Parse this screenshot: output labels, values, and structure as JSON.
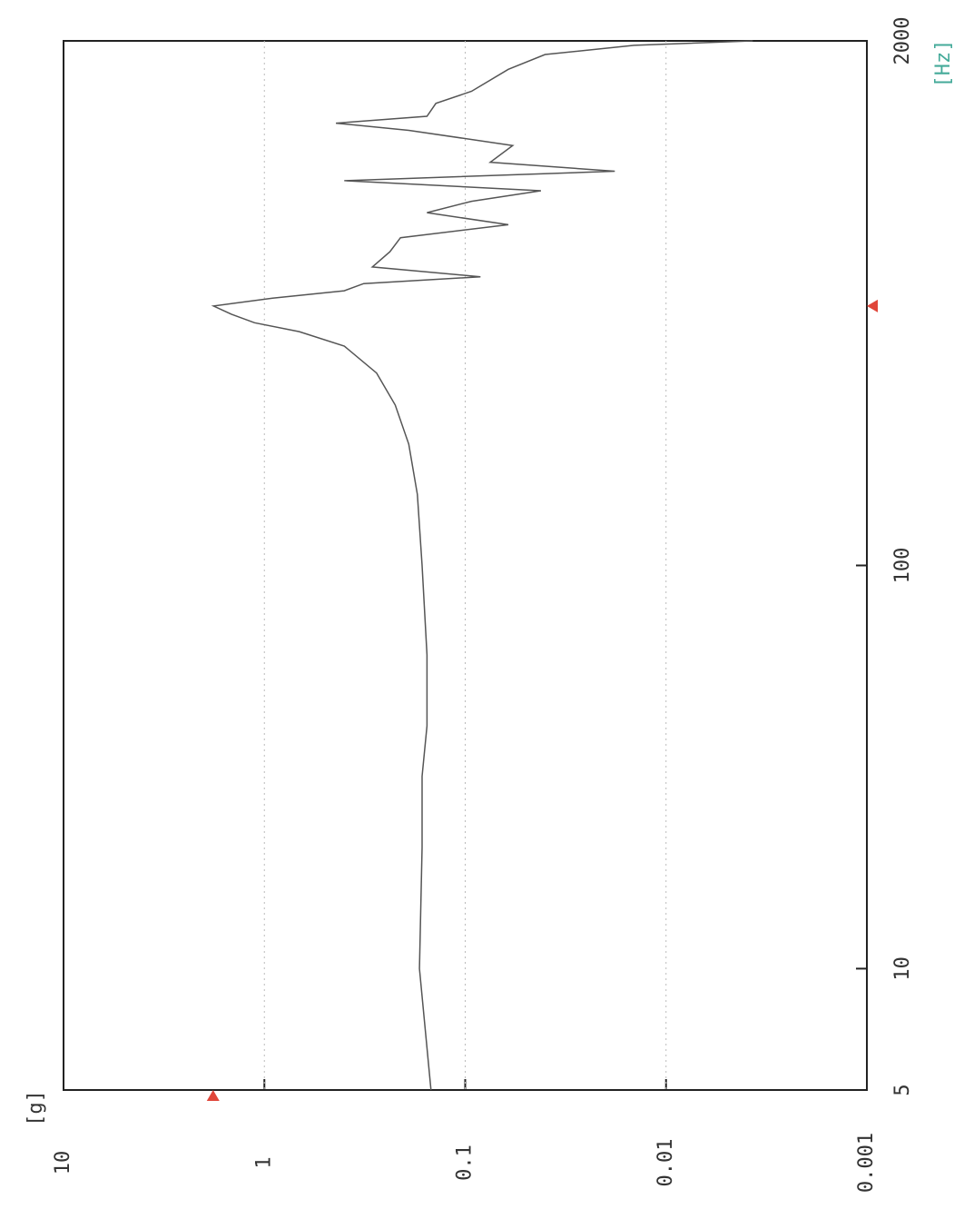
{
  "chart_data": {
    "type": "line",
    "y_label": "[g]",
    "x_label": "[Hz]",
    "x": [
      5,
      10,
      20,
      30,
      40,
      60,
      100,
      150,
      200,
      250,
      300,
      350,
      380,
      400,
      420,
      440,
      460,
      480,
      500,
      520,
      550,
      600,
      650,
      700,
      750,
      800,
      850,
      900,
      950,
      1000,
      1100,
      1200,
      1250,
      1300,
      1400,
      1500,
      1700,
      1850,
      1950,
      2000
    ],
    "values": [
      0.148,
      0.169,
      0.164,
      0.164,
      0.155,
      0.155,
      0.164,
      0.173,
      0.191,
      0.223,
      0.276,
      0.4,
      0.67,
      1.12,
      1.46,
      1.79,
      0.91,
      0.4,
      0.32,
      0.084,
      0.29,
      0.237,
      0.21,
      0.061,
      0.155,
      0.093,
      0.042,
      0.4,
      0.018,
      0.075,
      0.058,
      0.191,
      0.44,
      0.155,
      0.14,
      0.093,
      0.061,
      0.04,
      0.0144,
      0.0037
    ],
    "color": "#555555",
    "xlim": [
      5,
      2000
    ],
    "xticks": [
      5,
      10,
      100,
      2000
    ],
    "ylim": [
      0.001,
      10
    ],
    "yticks": [
      10,
      1,
      0.1,
      0.01,
      0.001
    ],
    "log_x": true,
    "log_y": true,
    "grid": true,
    "peak_marker": {
      "x": 440,
      "y": 1.8,
      "color": "#e0463a"
    }
  }
}
